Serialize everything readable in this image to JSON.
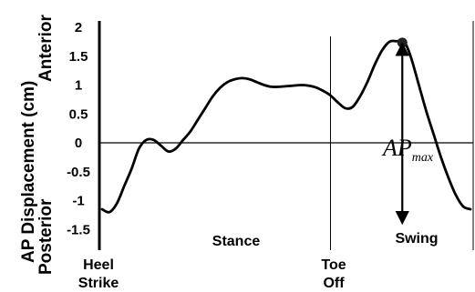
{
  "chart_data": {
    "type": "line",
    "title": "",
    "ylabel": "AP Displacement (cm)",
    "ylabel_top": "Anterior",
    "ylabel_bottom": "Posterior",
    "ylim": [
      -1.75,
      2.1
    ],
    "yticks": [
      {
        "value": 2,
        "label": "2"
      },
      {
        "value": 1.5,
        "label": "1.5"
      },
      {
        "value": 1,
        "label": "1"
      },
      {
        "value": 0.5,
        "label": "0.5"
      },
      {
        "value": 0,
        "label": "0"
      },
      {
        "value": -0.5,
        "label": "-0.5"
      },
      {
        "value": -1,
        "label": "-1"
      },
      {
        "value": -1.5,
        "label": "-1.5"
      }
    ],
    "xlim": [
      0,
      100
    ],
    "x_markers": {
      "heel_strike": {
        "x": 0,
        "line1": "Heel",
        "line2": "Strike"
      },
      "toe_off": {
        "x": 62,
        "line1": "Toe",
        "line2": "Off"
      }
    },
    "phases": {
      "stance": "Stance",
      "swing": "Swing"
    },
    "annotation": {
      "main": "AP",
      "subscript": "max",
      "x": 81.5,
      "from_y": 1.75,
      "to_y": -1.3
    },
    "series": [
      {
        "color": "#000000",
        "x": [
          0,
          2,
          4,
          6,
          8,
          10,
          12,
          14,
          16,
          18,
          20,
          22,
          24,
          26,
          28,
          30,
          32,
          34,
          36,
          38,
          40,
          42,
          44,
          46,
          48,
          50,
          52,
          54,
          56,
          58,
          60,
          62,
          64,
          66,
          68,
          70,
          72,
          74,
          76,
          78,
          80,
          81.5,
          82.5,
          84,
          86,
          88,
          90,
          92,
          94,
          96,
          98,
          100
        ],
        "y": [
          -1.15,
          -1.2,
          -1.05,
          -0.75,
          -0.45,
          -0.1,
          0.05,
          0.05,
          -0.05,
          -0.15,
          -0.1,
          0.05,
          0.2,
          0.4,
          0.6,
          0.8,
          0.95,
          1.05,
          1.1,
          1.12,
          1.1,
          1.05,
          1.0,
          0.97,
          0.97,
          0.98,
          0.99,
          1.0,
          0.99,
          0.96,
          0.9,
          0.82,
          0.7,
          0.6,
          0.62,
          0.8,
          1.05,
          1.35,
          1.6,
          1.75,
          1.76,
          1.76,
          1.7,
          1.45,
          1.0,
          0.55,
          0.15,
          -0.25,
          -0.6,
          -0.9,
          -1.1,
          -1.15
        ]
      }
    ]
  }
}
